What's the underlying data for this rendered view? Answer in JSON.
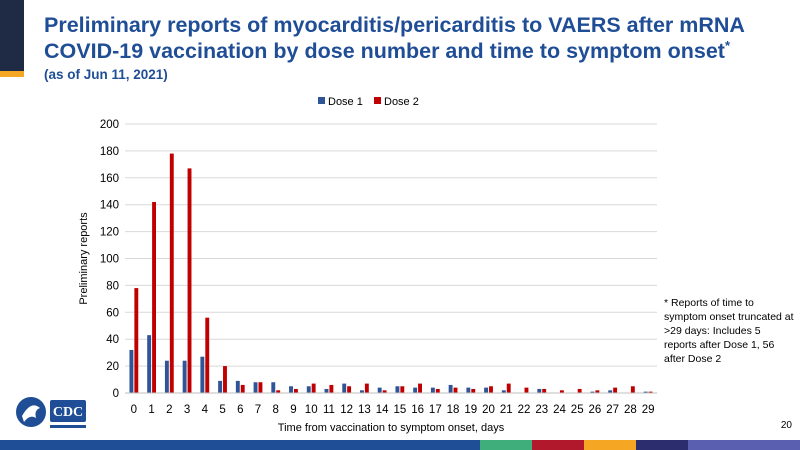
{
  "slide": {
    "title": "Preliminary reports of myocarditis/pericarditis to VAERS after mRNA COVID-19 vaccination by dose number and time to symptom onset",
    "title_footnote_marker": "*",
    "subtitle": "(as of Jun 11, 2021)",
    "note": "* Reports of time to symptom onset truncated at >29 days: Includes 5 reports after Dose 1, 56 after Dose 2",
    "page_number": "20",
    "logo_text": "CDC",
    "colors": {
      "title": "#1f4e96",
      "corner": "#1f2a44",
      "accent": "#f5a623"
    }
  },
  "chart_data": {
    "type": "bar",
    "categories": [
      "0",
      "1",
      "2",
      "3",
      "4",
      "5",
      "6",
      "7",
      "8",
      "9",
      "10",
      "11",
      "12",
      "13",
      "14",
      "15",
      "16",
      "17",
      "18",
      "19",
      "20",
      "21",
      "22",
      "23",
      "24",
      "25",
      "26",
      "27",
      "28",
      "29"
    ],
    "series": [
      {
        "name": "Dose 1",
        "color": "#2f5597",
        "values": [
          32,
          43,
          24,
          24,
          27,
          9,
          9,
          8,
          8,
          5,
          5,
          3,
          7,
          2,
          4,
          5,
          4,
          4,
          6,
          4,
          4,
          2,
          0,
          3,
          0,
          0,
          1,
          2,
          0,
          1
        ]
      },
      {
        "name": "Dose 2",
        "color": "#c00000",
        "values": [
          78,
          142,
          178,
          167,
          56,
          20,
          6,
          8,
          2,
          3,
          7,
          6,
          5,
          7,
          2,
          5,
          7,
          3,
          4,
          3,
          5,
          7,
          4,
          3,
          2,
          3,
          2,
          4,
          5,
          1
        ]
      }
    ],
    "xlabel": "Time from vaccination to symptom onset, days",
    "ylabel": "Preliminary reports",
    "ylim": [
      0,
      200
    ],
    "yticks": [
      0,
      20,
      40,
      60,
      80,
      100,
      120,
      140,
      160,
      180,
      200
    ],
    "grid": true,
    "legend_position": "top-center"
  }
}
